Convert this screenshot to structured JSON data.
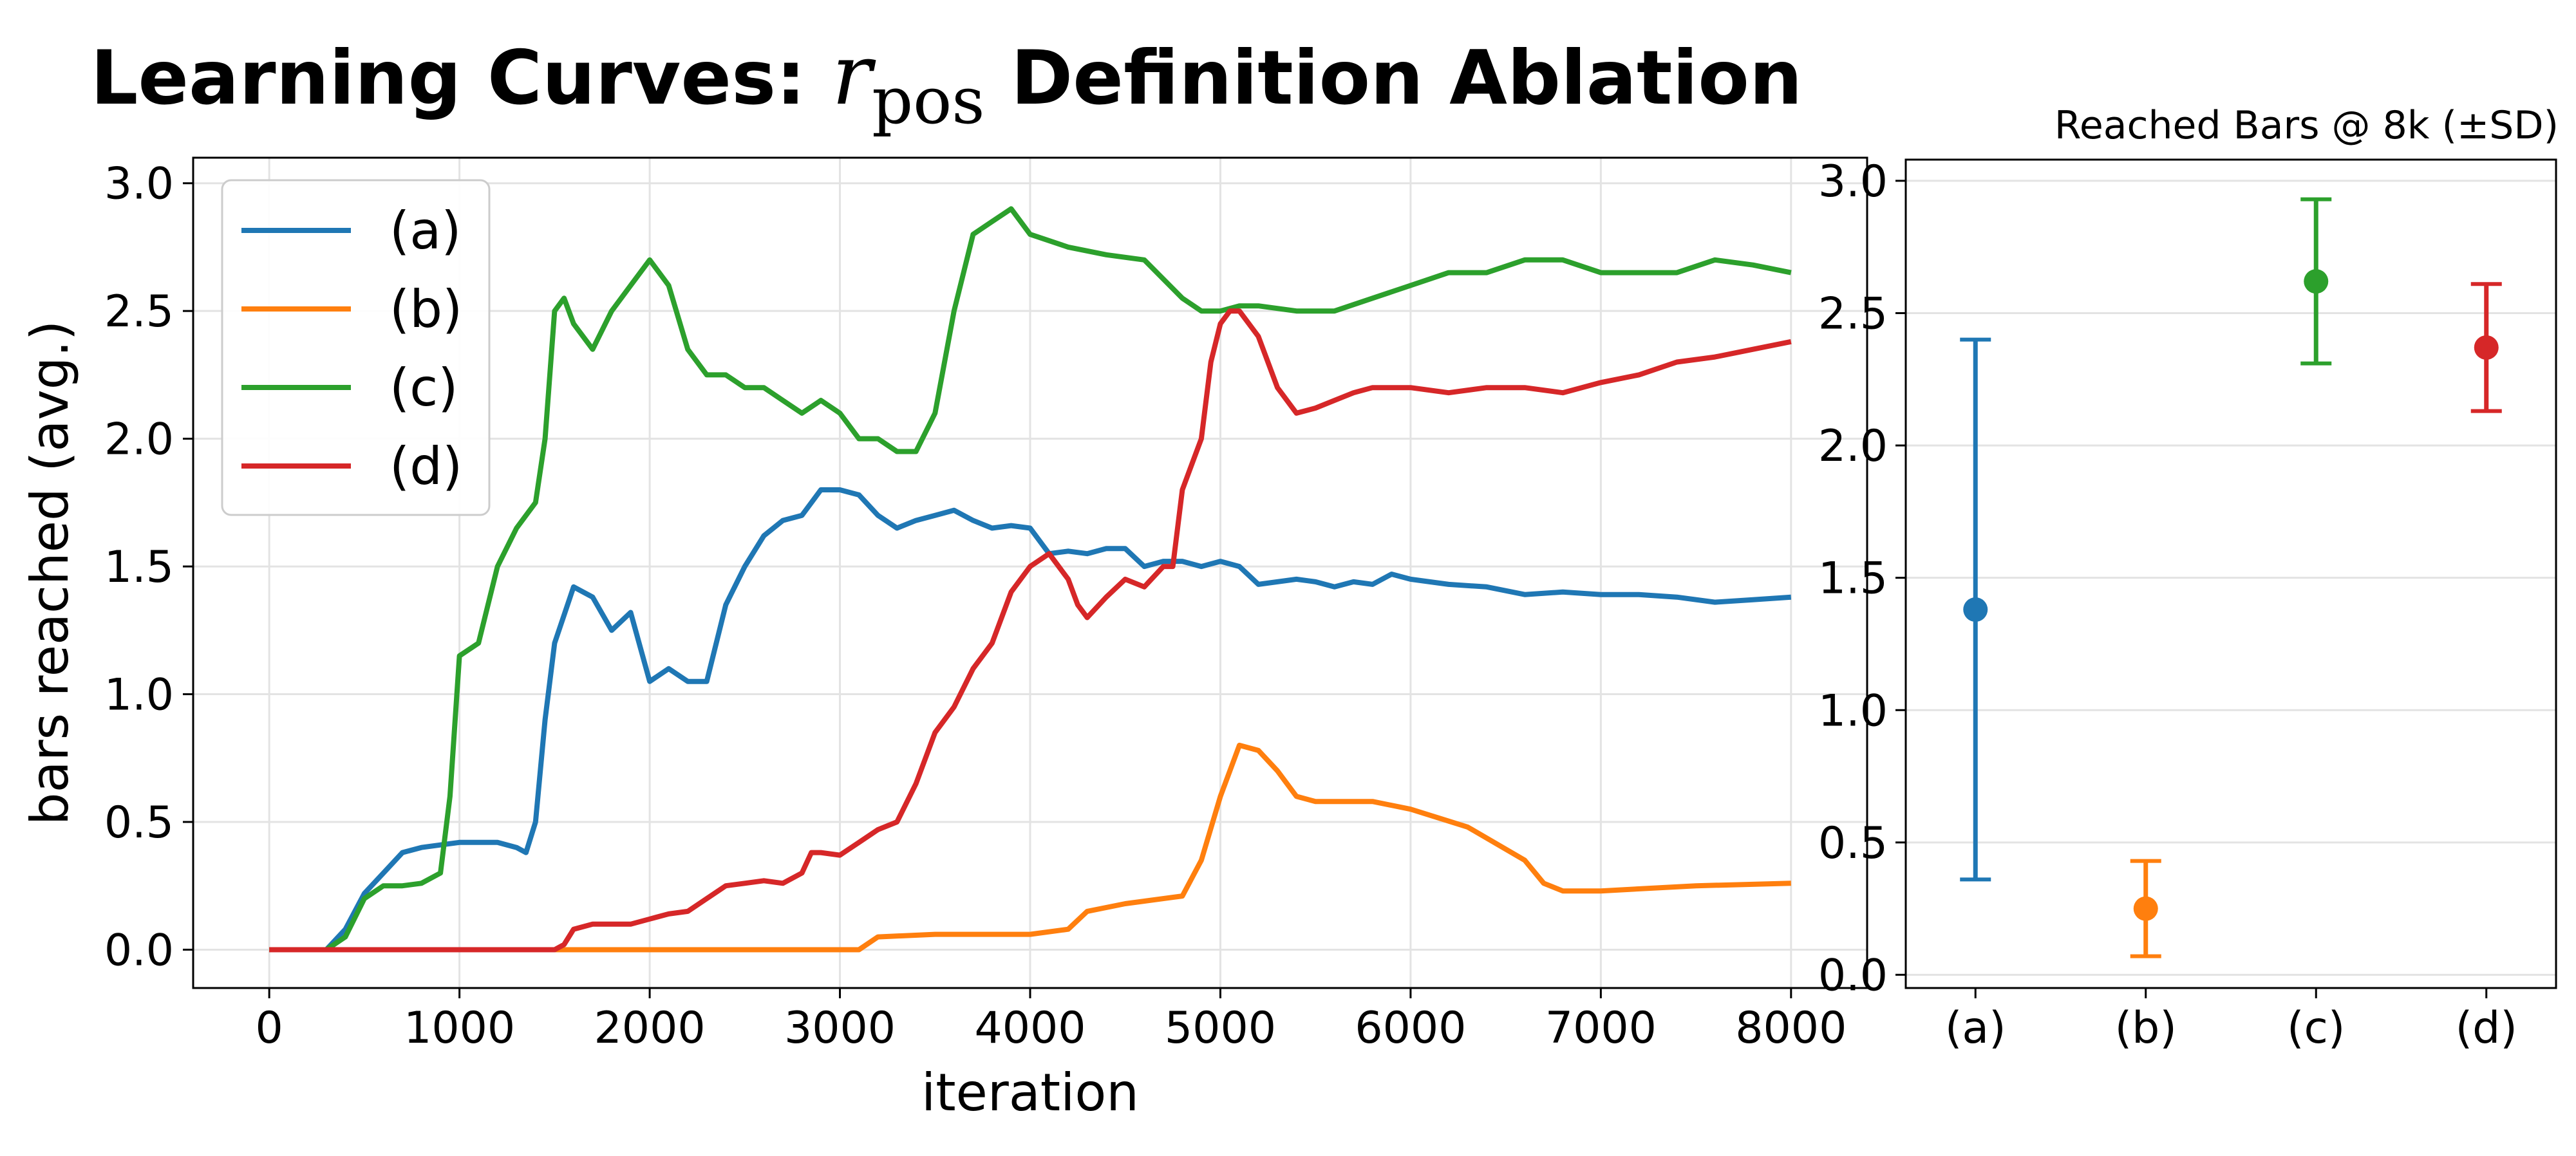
{
  "title_parts": {
    "prefix": "Learning Curves: ",
    "math_base": "r",
    "math_sub": "pos",
    "suffix": " Definition Ablation"
  },
  "colors": {
    "a": "#1f77b4",
    "b": "#ff7f0e",
    "c": "#2ca02c",
    "d": "#d62728"
  },
  "chart_data": [
    {
      "type": "line",
      "title": "Learning Curves: r_pos Definition Ablation",
      "xlabel": "iteration",
      "ylabel": "bars reached (avg.)",
      "xlim": [
        -400,
        8400
      ],
      "ylim": [
        -0.15,
        3.1
      ],
      "xticks": [
        0,
        1000,
        2000,
        3000,
        4000,
        5000,
        6000,
        7000,
        8000
      ],
      "yticks": [
        0.0,
        0.5,
        1.0,
        1.5,
        2.0,
        2.5,
        3.0
      ],
      "grid": true,
      "legend_position": "upper-left",
      "series": [
        {
          "name": "(a)",
          "x": [
            0,
            300,
            400,
            500,
            600,
            700,
            800,
            900,
            1000,
            1100,
            1200,
            1300,
            1350,
            1400,
            1450,
            1500,
            1600,
            1700,
            1800,
            1900,
            2000,
            2100,
            2200,
            2300,
            2400,
            2500,
            2600,
            2700,
            2800,
            2900,
            3000,
            3100,
            3200,
            3300,
            3400,
            3500,
            3600,
            3700,
            3800,
            3900,
            4000,
            4100,
            4200,
            4300,
            4400,
            4500,
            4600,
            4700,
            4800,
            4900,
            5000,
            5100,
            5200,
            5300,
            5400,
            5500,
            5600,
            5700,
            5800,
            5900,
            6000,
            6200,
            6400,
            6600,
            6800,
            7000,
            7200,
            7400,
            7600,
            7800,
            8000
          ],
          "y": [
            0,
            0,
            0.08,
            0.22,
            0.3,
            0.38,
            0.4,
            0.41,
            0.42,
            0.42,
            0.42,
            0.4,
            0.38,
            0.5,
            0.9,
            1.2,
            1.42,
            1.38,
            1.25,
            1.32,
            1.05,
            1.1,
            1.05,
            1.05,
            1.35,
            1.5,
            1.62,
            1.68,
            1.7,
            1.8,
            1.8,
            1.78,
            1.7,
            1.65,
            1.68,
            1.7,
            1.72,
            1.68,
            1.65,
            1.66,
            1.65,
            1.55,
            1.56,
            1.55,
            1.57,
            1.57,
            1.5,
            1.52,
            1.52,
            1.5,
            1.52,
            1.5,
            1.43,
            1.44,
            1.45,
            1.44,
            1.42,
            1.44,
            1.43,
            1.47,
            1.45,
            1.43,
            1.42,
            1.39,
            1.4,
            1.39,
            1.39,
            1.38,
            1.36,
            1.37,
            1.38
          ]
        },
        {
          "name": "(b)",
          "x": [
            0,
            1000,
            2000,
            3000,
            3100,
            3200,
            3500,
            4000,
            4200,
            4300,
            4500,
            4800,
            4900,
            5000,
            5100,
            5200,
            5300,
            5400,
            5500,
            5800,
            6000,
            6300,
            6600,
            6700,
            6800,
            7000,
            7500,
            8000
          ],
          "y": [
            0,
            0,
            0,
            0,
            0,
            0.05,
            0.06,
            0.06,
            0.08,
            0.15,
            0.18,
            0.21,
            0.35,
            0.6,
            0.8,
            0.78,
            0.7,
            0.6,
            0.58,
            0.58,
            0.55,
            0.48,
            0.35,
            0.26,
            0.23,
            0.23,
            0.25,
            0.26
          ]
        },
        {
          "name": "(c)",
          "x": [
            0,
            300,
            400,
            500,
            600,
            700,
            800,
            900,
            950,
            1000,
            1100,
            1200,
            1300,
            1400,
            1450,
            1500,
            1550,
            1600,
            1700,
            1800,
            1900,
            2000,
            2100,
            2200,
            2300,
            2400,
            2500,
            2600,
            2700,
            2800,
            2900,
            3000,
            3100,
            3200,
            3300,
            3400,
            3500,
            3600,
            3700,
            3800,
            3900,
            4000,
            4200,
            4400,
            4600,
            4800,
            4900,
            5000,
            5100,
            5200,
            5400,
            5600,
            5800,
            6000,
            6200,
            6400,
            6600,
            6800,
            7000,
            7200,
            7400,
            7600,
            7800,
            8000
          ],
          "y": [
            0,
            0,
            0.05,
            0.2,
            0.25,
            0.25,
            0.26,
            0.3,
            0.6,
            1.15,
            1.2,
            1.5,
            1.65,
            1.75,
            2.0,
            2.5,
            2.55,
            2.45,
            2.35,
            2.5,
            2.6,
            2.7,
            2.6,
            2.35,
            2.25,
            2.25,
            2.2,
            2.2,
            2.15,
            2.1,
            2.15,
            2.1,
            2.0,
            2.0,
            1.95,
            1.95,
            2.1,
            2.5,
            2.8,
            2.85,
            2.9,
            2.8,
            2.75,
            2.72,
            2.7,
            2.55,
            2.5,
            2.5,
            2.52,
            2.52,
            2.5,
            2.5,
            2.55,
            2.6,
            2.65,
            2.65,
            2.7,
            2.7,
            2.65,
            2.65,
            2.65,
            2.7,
            2.68,
            2.65
          ]
        },
        {
          "name": "(d)",
          "x": [
            0,
            1500,
            1550,
            1600,
            1700,
            1800,
            1900,
            2000,
            2100,
            2200,
            2300,
            2400,
            2500,
            2600,
            2700,
            2800,
            2850,
            2900,
            3000,
            3100,
            3200,
            3300,
            3400,
            3500,
            3600,
            3700,
            3800,
            3900,
            4000,
            4100,
            4200,
            4250,
            4300,
            4400,
            4500,
            4600,
            4700,
            4750,
            4800,
            4850,
            4900,
            4950,
            5000,
            5050,
            5100,
            5150,
            5200,
            5300,
            5400,
            5500,
            5600,
            5700,
            5800,
            6000,
            6200,
            6400,
            6600,
            6800,
            7000,
            7200,
            7400,
            7600,
            7800,
            8000
          ],
          "y": [
            0,
            0,
            0.02,
            0.08,
            0.1,
            0.1,
            0.1,
            0.12,
            0.14,
            0.15,
            0.2,
            0.25,
            0.26,
            0.27,
            0.26,
            0.3,
            0.38,
            0.38,
            0.37,
            0.42,
            0.47,
            0.5,
            0.65,
            0.85,
            0.95,
            1.1,
            1.2,
            1.4,
            1.5,
            1.55,
            1.45,
            1.35,
            1.3,
            1.38,
            1.45,
            1.42,
            1.5,
            1.5,
            1.8,
            1.9,
            2.0,
            2.3,
            2.45,
            2.5,
            2.5,
            2.45,
            2.4,
            2.2,
            2.1,
            2.12,
            2.15,
            2.18,
            2.2,
            2.2,
            2.18,
            2.2,
            2.2,
            2.18,
            2.22,
            2.25,
            2.3,
            2.32,
            2.35,
            2.38
          ]
        }
      ]
    },
    {
      "type": "errorbar",
      "title": "Reached Bars @ 8k (±SD)",
      "categories": [
        "(a)",
        "(b)",
        "(c)",
        "(d)"
      ],
      "values": [
        1.38,
        0.25,
        2.62,
        2.37
      ],
      "sd": [
        1.02,
        0.18,
        0.31,
        0.24
      ],
      "ylim": [
        -0.05,
        3.08
      ],
      "yticks": [
        0.0,
        0.5,
        1.0,
        1.5,
        2.0,
        2.5,
        3.0
      ],
      "grid": true
    }
  ]
}
